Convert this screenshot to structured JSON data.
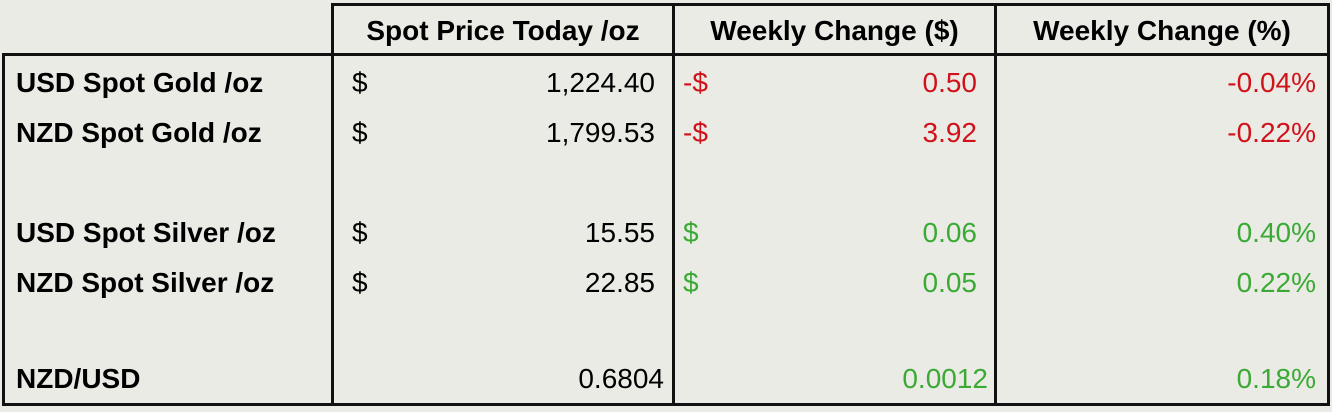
{
  "table": {
    "headers": [
      "Spot Price Today /oz",
      "Weekly Change ($)",
      "Weekly Change (%)"
    ],
    "rows": [
      {
        "label": "USD Spot Gold /oz",
        "price_symbol": "$",
        "price": "1,224.40",
        "change_symbol": "-$",
        "change": "0.50",
        "change_pct": "-0.04%",
        "change_color": "#d0121b"
      },
      {
        "label": "NZD Spot Gold /oz",
        "price_symbol": "$",
        "price": "1,799.53",
        "change_symbol": "-$",
        "change": "3.92",
        "change_pct": "-0.22%",
        "change_color": "#d0121b"
      },
      {
        "label": "USD Spot Silver /oz",
        "price_symbol": "$",
        "price": "15.55",
        "change_symbol": "$",
        "change": "0.06",
        "change_pct": "0.40%",
        "change_color": "#3aaa35"
      },
      {
        "label": "NZD Spot Silver /oz",
        "price_symbol": "$",
        "price": "22.85",
        "change_symbol": "$",
        "change": "0.05",
        "change_pct": "0.22%",
        "change_color": "#3aaa35"
      },
      {
        "label": "NZD/USD",
        "price": "0.6804",
        "change": "0.0012",
        "change_pct": "0.18%",
        "change_color": "#3aaa35"
      }
    ]
  }
}
